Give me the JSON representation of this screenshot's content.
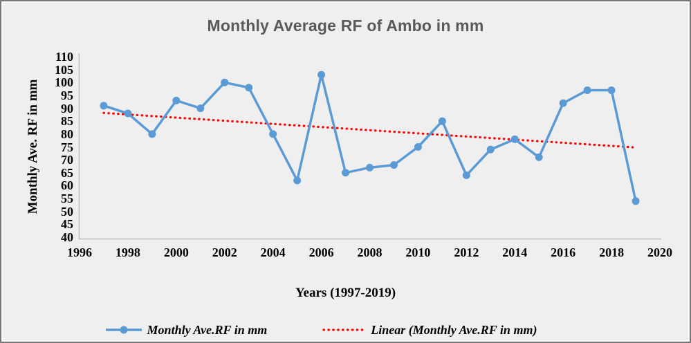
{
  "colors": {
    "background": "#f0efef",
    "frame": "#787878",
    "title_text": "#595959",
    "axis_line": "#bfbfbf",
    "tick_text": "#000000",
    "series_blue": "#5B9BD5",
    "trend_red": "#FF0000"
  },
  "chart_data": {
    "type": "line",
    "title": "Monthly Average RF of Ambo in mm",
    "xlabel": "Years (1997-2019)",
    "ylabel": "Monthly Ave. RF in mm",
    "x": [
      1997,
      1998,
      1999,
      2000,
      2001,
      2002,
      2003,
      2004,
      2005,
      2006,
      2007,
      2008,
      2009,
      2010,
      2011,
      2012,
      2013,
      2014,
      2015,
      2016,
      2017,
      2018,
      2019
    ],
    "series": [
      {
        "name": "Monthly Ave.RF in mm",
        "color": "#5B9BD5",
        "marker": "circle",
        "values": [
          91,
          88,
          80,
          93,
          90,
          100,
          98,
          80,
          62,
          103,
          65,
          67,
          68,
          75,
          85,
          64,
          74,
          78,
          71,
          92,
          97,
          97,
          54
        ]
      }
    ],
    "trendline": {
      "name": "Linear (Monthly Ave.RF in mm)",
      "color": "#FF0000",
      "style": "dotted",
      "start_value": 88.2,
      "end_value": 74.8
    },
    "x_axis": {
      "min": 1996,
      "max": 2020,
      "tick_step": 2,
      "ticks": [
        1996,
        1998,
        2000,
        2002,
        2004,
        2006,
        2008,
        2010,
        2012,
        2014,
        2016,
        2018,
        2020
      ]
    },
    "y_axis": {
      "min": 40,
      "max": 110,
      "tick_step": 5,
      "ticks": [
        110,
        105,
        100,
        95,
        90,
        85,
        80,
        75,
        70,
        65,
        60,
        55,
        50,
        45,
        40
      ]
    },
    "grid": false,
    "legend_position": "bottom"
  }
}
